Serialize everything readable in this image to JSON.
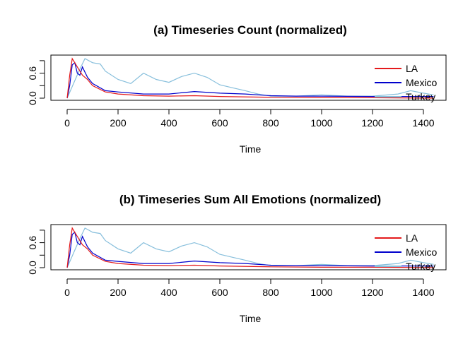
{
  "chart_data": [
    {
      "type": "line",
      "title": "(a) Timeseries Count (normalized)",
      "xlabel": "Time",
      "ylabel": "",
      "xlim": [
        0,
        1440
      ],
      "ylim": [
        0,
        1
      ],
      "x_ticks": [
        "0",
        "200",
        "400",
        "600",
        "800",
        "1000",
        "1200",
        "1400"
      ],
      "y_ticks": [
        "0.0",
        "0.6"
      ],
      "legend_position": "top-right",
      "grid": false,
      "series": [
        {
          "name": "LA",
          "color": "#e41a1c",
          "x": [
            0,
            10,
            20,
            30,
            40,
            60,
            80,
            100,
            150,
            200,
            300,
            400,
            500,
            600,
            800,
            1000,
            1200,
            1440
          ],
          "values": [
            0.0,
            0.55,
            0.95,
            0.85,
            0.75,
            0.55,
            0.45,
            0.3,
            0.15,
            0.1,
            0.06,
            0.05,
            0.06,
            0.04,
            0.02,
            0.01,
            0.01,
            0.0
          ]
        },
        {
          "name": "Mexico",
          "color": "#0000cc",
          "x": [
            0,
            10,
            20,
            30,
            40,
            50,
            60,
            80,
            100,
            150,
            200,
            300,
            400,
            500,
            600,
            700,
            800,
            900,
            1000,
            1200,
            1440
          ],
          "values": [
            0.0,
            0.3,
            0.8,
            0.85,
            0.6,
            0.55,
            0.75,
            0.5,
            0.35,
            0.18,
            0.15,
            0.1,
            0.1,
            0.16,
            0.12,
            0.1,
            0.06,
            0.05,
            0.05,
            0.04,
            0.04
          ]
        },
        {
          "name": "Turkey",
          "color": "#87bfdc",
          "x": [
            0,
            50,
            70,
            100,
            130,
            150,
            200,
            250,
            300,
            350,
            400,
            450,
            500,
            550,
            600,
            650,
            700,
            750,
            800,
            900,
            1000,
            1100,
            1200,
            1300,
            1350,
            1400,
            1440
          ],
          "values": [
            0.0,
            0.7,
            0.95,
            0.85,
            0.82,
            0.65,
            0.45,
            0.35,
            0.6,
            0.45,
            0.38,
            0.52,
            0.6,
            0.5,
            0.32,
            0.25,
            0.18,
            0.1,
            0.05,
            0.05,
            0.08,
            0.05,
            0.05,
            0.1,
            0.18,
            0.12,
            0.08
          ]
        }
      ]
    },
    {
      "type": "line",
      "title": "(b) Timeseries Sum All Emotions (normalized)",
      "xlabel": "Time",
      "ylabel": "",
      "xlim": [
        0,
        1440
      ],
      "ylim": [
        0,
        1
      ],
      "x_ticks": [
        "0",
        "200",
        "400",
        "600",
        "800",
        "1000",
        "1200",
        "1400"
      ],
      "y_ticks": [
        "0.0",
        "0.6"
      ],
      "legend_position": "top-right",
      "grid": false,
      "series": [
        {
          "name": "LA",
          "color": "#e41a1c",
          "x": [
            0,
            10,
            20,
            30,
            40,
            60,
            80,
            100,
            150,
            200,
            300,
            400,
            500,
            600,
            800,
            1000,
            1200,
            1440
          ],
          "values": [
            0.0,
            0.55,
            0.95,
            0.85,
            0.75,
            0.55,
            0.45,
            0.3,
            0.15,
            0.1,
            0.06,
            0.05,
            0.06,
            0.04,
            0.02,
            0.01,
            0.01,
            0.0
          ]
        },
        {
          "name": "Mexico",
          "color": "#0000cc",
          "x": [
            0,
            10,
            20,
            30,
            40,
            50,
            60,
            80,
            100,
            150,
            200,
            300,
            400,
            500,
            600,
            700,
            800,
            900,
            1000,
            1200,
            1440
          ],
          "values": [
            0.0,
            0.3,
            0.8,
            0.85,
            0.6,
            0.55,
            0.75,
            0.5,
            0.35,
            0.18,
            0.15,
            0.1,
            0.1,
            0.16,
            0.12,
            0.1,
            0.06,
            0.05,
            0.05,
            0.04,
            0.04
          ]
        },
        {
          "name": "Turkey",
          "color": "#87bfdc",
          "x": [
            0,
            50,
            70,
            100,
            130,
            150,
            200,
            250,
            300,
            350,
            400,
            450,
            500,
            550,
            600,
            650,
            700,
            750,
            800,
            900,
            1000,
            1100,
            1200,
            1300,
            1350,
            1400,
            1440
          ],
          "values": [
            0.0,
            0.7,
            0.95,
            0.85,
            0.82,
            0.65,
            0.45,
            0.35,
            0.6,
            0.45,
            0.38,
            0.52,
            0.6,
            0.5,
            0.32,
            0.25,
            0.18,
            0.1,
            0.05,
            0.05,
            0.08,
            0.05,
            0.05,
            0.1,
            0.18,
            0.12,
            0.08
          ]
        }
      ]
    }
  ]
}
